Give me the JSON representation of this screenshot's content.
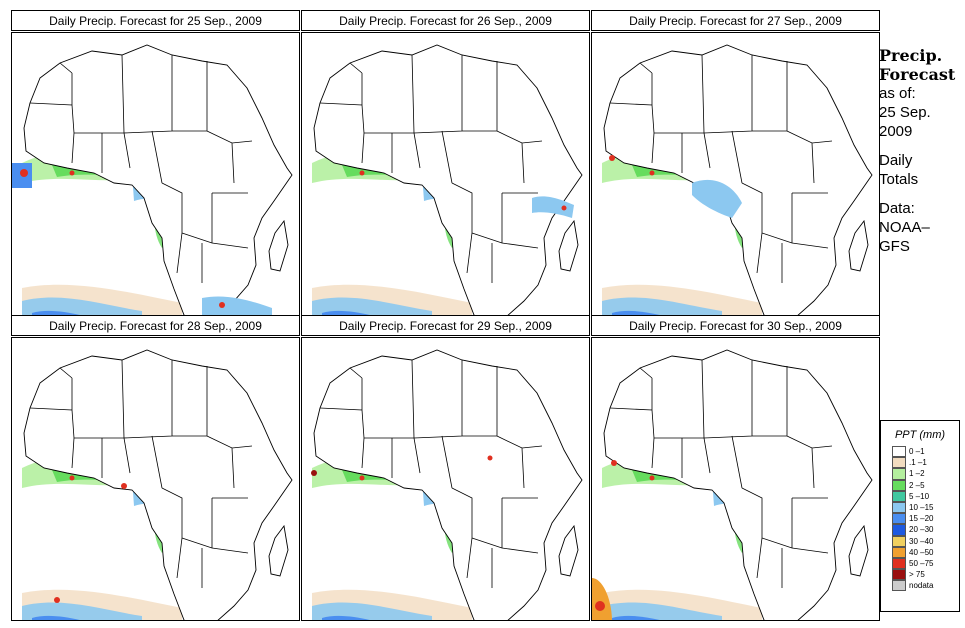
{
  "panels": [
    {
      "title": "Daily Precip. Forecast for  25 Sep., 2009"
    },
    {
      "title": "Daily Precip. Forecast for  26 Sep., 2009"
    },
    {
      "title": "Daily Precip. Forecast for  27 Sep., 2009"
    },
    {
      "title": "Daily Precip. Forecast for  28 Sep., 2009"
    },
    {
      "title": "Daily Precip. Forecast for  29 Sep., 2009"
    },
    {
      "title": "Daily Precip. Forecast for  30 Sep., 2009"
    }
  ],
  "info": {
    "heading_line1": "Precip.",
    "heading_line2": "Forecast",
    "asof_line1": "as of:",
    "asof_line2": "25 Sep.",
    "asof_line3": "2009",
    "daily_line1": "Daily",
    "daily_line2": "Totals",
    "data_line1": "Data:",
    "data_line2": "NOAA–",
    "data_line3": "GFS"
  },
  "legend": {
    "title": "PPT (mm)",
    "items": [
      {
        "label": "0 –1",
        "color": "#ffffff"
      },
      {
        "label": ".1 –1",
        "color": "#f2dcc0"
      },
      {
        "label": "1 –2",
        "color": "#b4ef9e"
      },
      {
        "label": "2 –5",
        "color": "#66dc5e"
      },
      {
        "label": "5 –10",
        "color": "#40c8a0"
      },
      {
        "label": "10 –15",
        "color": "#8cc8f0"
      },
      {
        "label": "15 –20",
        "color": "#4a8ef0"
      },
      {
        "label": "20 –30",
        "color": "#1e5ae0"
      },
      {
        "label": "30 –40",
        "color": "#f0d060"
      },
      {
        "label": "40 –50",
        "color": "#f0a030"
      },
      {
        "label": "50 –75",
        "color": "#e03020"
      },
      {
        "label": "> 75",
        "color": "#9a1010"
      },
      {
        "label": "nodata",
        "color": "#cccccc"
      }
    ]
  }
}
